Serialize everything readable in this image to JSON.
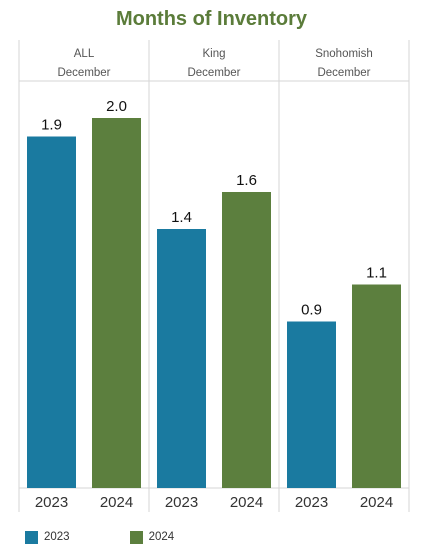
{
  "chart_data": {
    "type": "bar",
    "title": "Months of Inventory",
    "colors": {
      "title": "#5b7c3a",
      "2023": "#1a7aa0",
      "2024": "#5c7f3e",
      "grid": "#d6d6d6"
    },
    "ylim": [
      0,
      2.2
    ],
    "categories": [
      "2023",
      "2024"
    ],
    "legend": {
      "position": "bottom-left",
      "entries": [
        "2023",
        "2024"
      ]
    },
    "panels": [
      {
        "region": "ALL",
        "period": "December",
        "series": [
          {
            "x": "2023",
            "value": 1.9
          },
          {
            "x": "2024",
            "value": 2.0
          }
        ]
      },
      {
        "region": "King",
        "period": "December",
        "series": [
          {
            "x": "2023",
            "value": 1.4
          },
          {
            "x": "2024",
            "value": 1.6
          }
        ]
      },
      {
        "region": "Snohomish",
        "period": "December",
        "series": [
          {
            "x": "2023",
            "value": 0.9
          },
          {
            "x": "2024",
            "value": 1.1
          }
        ]
      }
    ],
    "value_labels": {
      "0": [
        "1.9",
        "2.0"
      ],
      "1": [
        "1.4",
        "1.6"
      ],
      "2": [
        "0.9",
        "1.1"
      ]
    }
  }
}
